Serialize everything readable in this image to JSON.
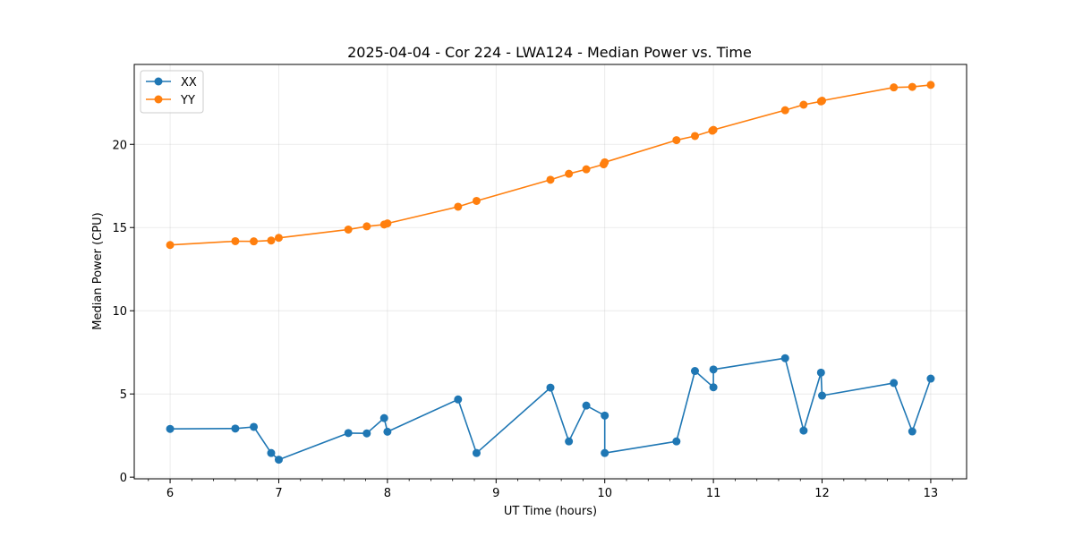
{
  "chart_data": {
    "type": "line",
    "title": "2025-04-04 - Cor 224 - LWA124 - Median Power vs. Time",
    "xlabel": "UT Time (hours)",
    "ylabel": "Median Power (CPU)",
    "xlim": [
      5.67,
      13.33
    ],
    "ylim": [
      -0.1,
      24.8
    ],
    "xticks": [
      6,
      7,
      8,
      9,
      10,
      11,
      12,
      13
    ],
    "yticks": [
      0,
      5,
      10,
      15,
      20
    ],
    "xminor_step": 0.2,
    "grid": true,
    "legend_position": "top-left",
    "series": [
      {
        "name": "XX",
        "color": "#1f77b4",
        "x": [
          6.0,
          6.6,
          6.77,
          6.93,
          7.0,
          7.64,
          7.81,
          7.97,
          8.0,
          8.65,
          8.82,
          9.5,
          9.67,
          9.83,
          10.0,
          10.0,
          10.66,
          10.83,
          11.0,
          11.0,
          11.66,
          11.83,
          11.99,
          12.0,
          12.66,
          12.83,
          13.0
        ],
        "y": [
          2.9,
          2.92,
          3.02,
          1.45,
          1.05,
          2.65,
          2.63,
          3.55,
          2.73,
          4.67,
          1.45,
          5.38,
          2.15,
          4.3,
          3.7,
          1.45,
          2.15,
          6.38,
          5.4,
          6.47,
          7.15,
          2.8,
          6.28,
          4.9,
          5.66,
          2.75,
          5.92
        ]
      },
      {
        "name": "YY",
        "color": "#ff7f0e",
        "x": [
          6.0,
          6.6,
          6.77,
          6.93,
          7.0,
          7.64,
          7.81,
          7.97,
          8.0,
          8.65,
          8.82,
          9.5,
          9.67,
          9.83,
          9.99,
          10.0,
          10.66,
          10.83,
          10.99,
          11.0,
          11.66,
          11.83,
          11.99,
          12.0,
          12.66,
          12.83,
          13.0
        ],
        "y": [
          13.95,
          14.18,
          14.17,
          14.22,
          14.38,
          14.88,
          15.07,
          15.18,
          15.25,
          16.25,
          16.6,
          17.87,
          18.23,
          18.5,
          18.8,
          18.92,
          20.25,
          20.5,
          20.82,
          20.87,
          22.05,
          22.38,
          22.58,
          22.62,
          23.42,
          23.45,
          23.57
        ]
      }
    ]
  }
}
